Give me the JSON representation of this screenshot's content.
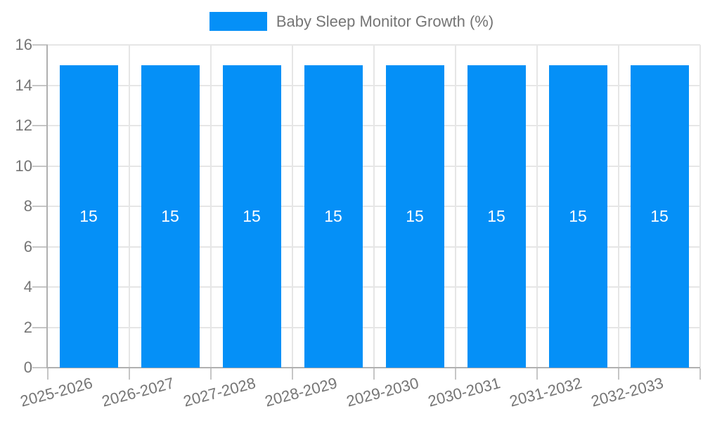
{
  "chart_data": {
    "type": "bar",
    "title": "",
    "legend": {
      "label": "Baby Sleep Monitor Growth (%)",
      "position": "top-center"
    },
    "categories": [
      "2025-2026",
      "2026-2027",
      "2027-2028",
      "2028-2029",
      "2029-2030",
      "2030-2031",
      "2031-2032",
      "2032-2033"
    ],
    "series": [
      {
        "name": "Baby Sleep Monitor Growth (%)",
        "values": [
          15,
          15,
          15,
          15,
          15,
          15,
          15,
          15
        ]
      }
    ],
    "bar_value_labels": [
      "15",
      "15",
      "15",
      "15",
      "15",
      "15",
      "15",
      "15"
    ],
    "xlabel": "",
    "ylabel": "",
    "ylim": [
      0,
      16
    ],
    "ytick_step": 2,
    "ytick_labels": [
      "0",
      "2",
      "4",
      "6",
      "8",
      "10",
      "12",
      "14",
      "16"
    ],
    "grid": true,
    "colors": {
      "bar": "#0590f7",
      "bar_label": "#ffffff",
      "axis_text": "#757575",
      "gridline": "#e6e6e6",
      "axis_line": "#b0b0b0",
      "tick": "#c6c6c6",
      "background": "#ffffff"
    }
  }
}
